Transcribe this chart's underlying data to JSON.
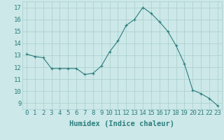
{
  "x": [
    0,
    1,
    2,
    3,
    4,
    5,
    6,
    7,
    8,
    9,
    10,
    11,
    12,
    13,
    14,
    15,
    16,
    17,
    18,
    19,
    20,
    21,
    22,
    23
  ],
  "y": [
    13.1,
    12.9,
    12.8,
    11.9,
    11.9,
    11.9,
    11.9,
    11.4,
    11.5,
    12.1,
    13.3,
    14.2,
    15.5,
    16.0,
    17.0,
    16.5,
    15.8,
    15.0,
    13.8,
    12.3,
    10.1,
    9.8,
    9.4,
    8.8
  ],
  "line_color": "#2d7d7d",
  "marker": "+",
  "bg_color": "#cce8e8",
  "grid_color": "#aacccc",
  "xlabel": "Humidex (Indice chaleur)",
  "ylim": [
    8.5,
    17.5
  ],
  "yticks": [
    9,
    10,
    11,
    12,
    13,
    14,
    15,
    16,
    17
  ],
  "xticks": [
    0,
    1,
    2,
    3,
    4,
    5,
    6,
    7,
    8,
    9,
    10,
    11,
    12,
    13,
    14,
    15,
    16,
    17,
    18,
    19,
    20,
    21,
    22,
    23
  ],
  "xlabel_fontsize": 7.5,
  "tick_fontsize": 6.5
}
